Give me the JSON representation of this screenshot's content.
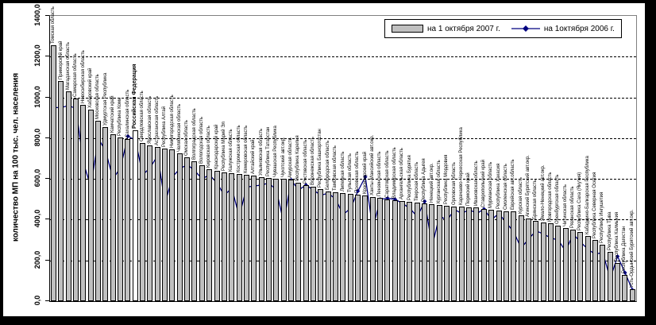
{
  "chart_data": {
    "type": "bar",
    "title": "",
    "ylabel": "количество МП на 100 тыс. чел. населения",
    "xlabel": "",
    "ylim": [
      0,
      1400
    ],
    "ytick_step": 200,
    "ytick_labels": [
      "0,0",
      "200,0",
      "400,0",
      "600,0",
      "800,0",
      "1000,0",
      "1200,0",
      "1400,0"
    ],
    "grid": "dashed horizontal",
    "legend_position": "top-right inside plot",
    "highlighted_category": "Российская Федерация",
    "categories": [
      "Томская область",
      "Приморский край",
      "Магаданская область",
      "Самарская область",
      "Новосибирская область",
      "Хабаровский край",
      "Московская область",
      "Удмуртская Республика",
      "Камчатский край",
      "Республика Коми",
      "Сахалинская область",
      "Российская Федерация",
      "Свердловская область",
      "Ярославская область",
      "Астраханская область",
      "Республика Алтай",
      "Нижегородская область",
      "Челябинская область",
      "Омская область",
      "Волгоградская область",
      "Вологодская область",
      "Кировская область",
      "Краснодарский край",
      "Республика Марий Эл",
      "Калужская область",
      "Костромская область",
      "Кемеровская область",
      "Алтайский край",
      "Ульяновская область",
      "Республика Татарстан",
      "Чувашская Республика",
      "Чукотский авт.окр.",
      "Амурская область",
      "Республика Карелия",
      "Ростовская область",
      "Воронежская область",
      "Республика Башкортостан",
      "Белгородская область",
      "Тамбовская область",
      "Липецкая область",
      "Тульская область",
      "Псковская область",
      "Красноярский край",
      "Ханты-Мансийский авт.окр.",
      "Пензенская область",
      "Саратовская область",
      "Владимирская область",
      "Архангельская область",
      "Республика Бурятия",
      "Тверская область",
      "Республика Адыгея",
      "Ненецкий авт.окр.",
      "Курганская область",
      "Республика Мордовия",
      "Орловская область",
      "Карачаево-Черкесская Республика",
      "Пермский край",
      "Ивановская область",
      "Ставропольский край",
      "Мурманская область",
      "Республика Хакасия",
      "Смоленская область",
      "Еврейская авт.область",
      "Курская область",
      "Агинский Бурятский авт.окр.",
      "Брянская область",
      "Ямало-Ненецкий авт.окр.",
      "Новгородская область",
      "Оренбургская область",
      "Читинская область",
      "Рязанская область",
      "Республика Саха (Якутия)",
      "Кабардино-Балкарская Республика",
      "Республика Северная Осетия",
      "Республика Ингушетия",
      "Республика Тыва",
      "Республика Калмыкия",
      "Республика Дагестан",
      "Усть-Ордынский Бурятский авт.окр."
    ],
    "series": [
      {
        "name": "на 1 октября 2007 г.",
        "type": "bar",
        "color": "#c0c0c0",
        "values": [
          1255,
          1080,
          1030,
          995,
          965,
          940,
          885,
          855,
          820,
          805,
          795,
          840,
          775,
          766,
          758,
          750,
          744,
          725,
          705,
          685,
          665,
          648,
          640,
          632,
          628,
          624,
          620,
          616,
          610,
          605,
          601,
          599,
          597,
          580,
          570,
          560,
          550,
          540,
          535,
          530,
          525,
          522,
          519,
          512,
          506,
          500,
          495,
          491,
          486,
          482,
          478,
          475,
          472,
          469,
          466,
          463,
          461,
          459,
          452,
          448,
          444,
          442,
          440,
          420,
          405,
          395,
          388,
          382,
          370,
          360,
          351,
          340,
          320,
          300,
          277,
          240,
          187,
          130,
          60
        ]
      },
      {
        "name": "на 1октября 2006 г.",
        "type": "line",
        "color": "#000080",
        "values": [
          950,
          950,
          960,
          945,
          680,
          560,
          800,
          735,
          600,
          655,
          810,
          790,
          620,
          655,
          715,
          480,
          610,
          650,
          670,
          640,
          600,
          620,
          580,
          520,
          555,
          415,
          560,
          565,
          570,
          580,
          545,
          385,
          595,
          545,
          570,
          545,
          520,
          530,
          500,
          425,
          455,
          540,
          610,
          355,
          500,
          505,
          500,
          480,
          455,
          415,
          490,
          270,
          420,
          395,
          450,
          430,
          450,
          430,
          452,
          400,
          430,
          385,
          340,
          260,
          305,
          345,
          330,
          310,
          300,
          245,
          330,
          290,
          255,
          230,
          240,
          110,
          220,
          140,
          55
        ]
      }
    ]
  },
  "colors": {
    "bar_fill": "#c0c0c0",
    "bar_border": "#000000",
    "highlight_bar_fill": "#ffffff",
    "line": "#000080",
    "plot_top_right_border": "#808080",
    "frame": "#000000",
    "background": "#ffffff"
  }
}
